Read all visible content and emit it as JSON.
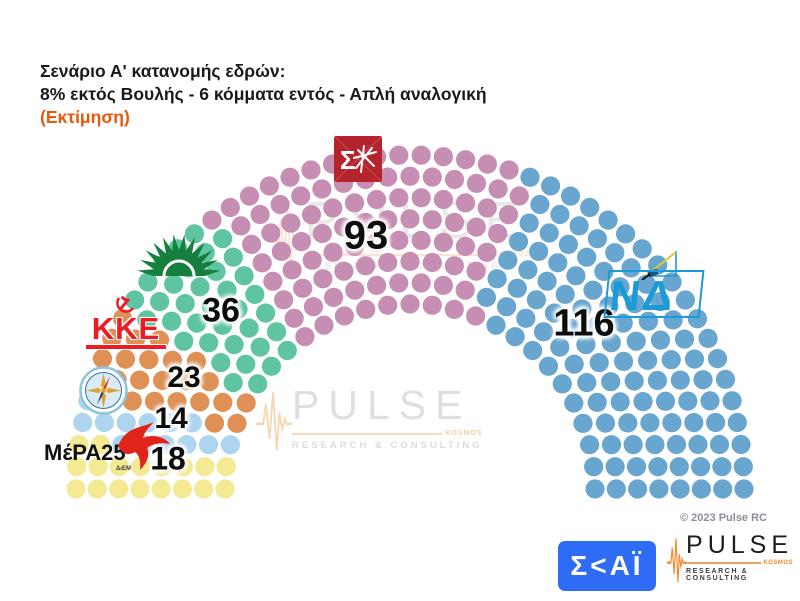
{
  "title": {
    "line1": "Σενάριο Α' κατανομής εδρών:",
    "line2": "8% εκτός Βουλής - 6 κόμματα εντός - Απλή αναλογική",
    "line3": "(Εκτίμηση)"
  },
  "chart_data": {
    "type": "parliament-hemicycle",
    "title": "Σενάριο Α' κατανομής εδρών: 8% εκτός Βουλής - 6 κόμματα εντός - Απλή αναλογική (Εκτίμηση)",
    "total_seats": 300,
    "rows": 8,
    "order": "left-to-right",
    "series": [
      {
        "name": "ΜέΡΑ25",
        "seats": 18,
        "label": "18",
        "color": "#f3ea93"
      },
      {
        "name": "Πλεύση Ελευθερίας",
        "seats": 14,
        "label": "14",
        "color": "#add5ef"
      },
      {
        "name": "ΚΚΕ",
        "seats": 23,
        "label": "23",
        "color": "#df9055"
      },
      {
        "name": "ΠΑΣΟΚ",
        "seats": 36,
        "label": "36",
        "color": "#5fc4a2"
      },
      {
        "name": "ΣΥΡΙΖΑ",
        "seats": 93,
        "label": "93",
        "color": "#c78eb4"
      },
      {
        "name": "ΝΔ",
        "seats": 116,
        "label": "116",
        "color": "#68a6cf"
      }
    ]
  },
  "logos": {
    "kke_text": "KKE",
    "mera_text": "MέPA25",
    "mera_sub": "ΔιΕΜ",
    "nd_text": "ΝΔ"
  },
  "watermark": {
    "word": "PULSE",
    "tag": "KOSMOS",
    "sub": "RESEARCH & CONSULTING"
  },
  "footer": {
    "copyright": "© 2023 Pulse RC",
    "skai_text": "Σ<ΑΪ",
    "pulse_word": "PULSE",
    "pulse_tag": "KOSMOS",
    "pulse_sub": "RESEARCH & CONSULTING"
  }
}
